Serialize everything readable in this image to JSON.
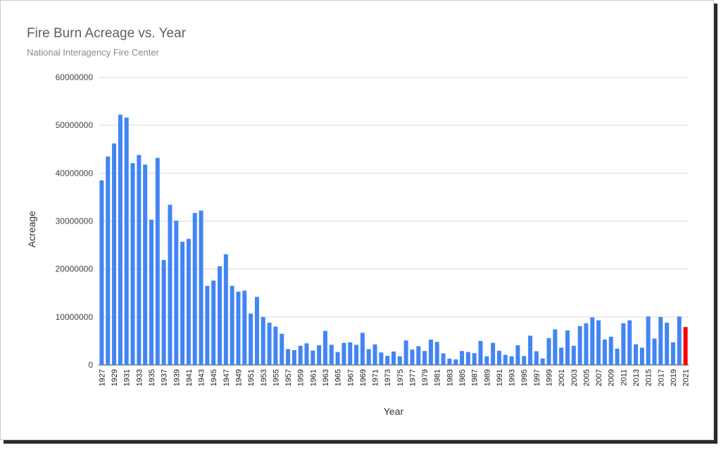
{
  "chart_data": {
    "type": "bar",
    "title": "Fire Burn Acreage vs. Year",
    "subtitle": "National Interagency Fire Center",
    "xlabel": "Year",
    "ylabel": "Acreage",
    "ylim": [
      0,
      60000000
    ],
    "yticks": [
      "0",
      "10000000",
      "20000000",
      "30000000",
      "40000000",
      "50000000",
      "60000000"
    ],
    "grid": true,
    "colors": {
      "bar": "#4285f4",
      "highlight": "#ff0000",
      "grid": "#d9d9d9"
    },
    "highlight_category": "2021",
    "categories": [
      "1927",
      "1928",
      "1929",
      "1930",
      "1931",
      "1932",
      "1933",
      "1934",
      "1935",
      "1936",
      "1937",
      "1938",
      "1939",
      "1940",
      "1941",
      "1942",
      "1943",
      "1944",
      "1945",
      "1946",
      "1947",
      "1948",
      "1949",
      "1950",
      "1951",
      "1952",
      "1953",
      "1954",
      "1955",
      "1956",
      "1957",
      "1958",
      "1959",
      "1960",
      "1961",
      "1962",
      "1963",
      "1964",
      "1965",
      "1966",
      "1967",
      "1968",
      "1969",
      "1970",
      "1971",
      "1972",
      "1973",
      "1974",
      "1975",
      "1976",
      "1977",
      "1978",
      "1979",
      "1980",
      "1981",
      "1982",
      "1983",
      "1984",
      "1985",
      "1986",
      "1987",
      "1988",
      "1989",
      "1990",
      "1991",
      "1992",
      "1993",
      "1994",
      "1995",
      "1996",
      "1997",
      "1998",
      "1999",
      "2000",
      "2001",
      "2002",
      "2003",
      "2004",
      "2005",
      "2006",
      "2007",
      "2008",
      "2009",
      "2010",
      "2011",
      "2012",
      "2013",
      "2014",
      "2015",
      "2016",
      "2017",
      "2018",
      "2019",
      "2020",
      "2021"
    ],
    "values": [
      38500000,
      43500000,
      46200000,
      52200000,
      51600000,
      42100000,
      43800000,
      41800000,
      30300000,
      43200000,
      21900000,
      33400000,
      30100000,
      25700000,
      26300000,
      31700000,
      32200000,
      16500000,
      17600000,
      20600000,
      23100000,
      16500000,
      15300000,
      15500000,
      10700000,
      14200000,
      10000000,
      8800000,
      8000000,
      6500000,
      3300000,
      3100000,
      4000000,
      4500000,
      3000000,
      4100000,
      7100000,
      4200000,
      2700000,
      4600000,
      4700000,
      4200000,
      6700000,
      3300000,
      4300000,
      2600000,
      1900000,
      2800000,
      1800000,
      5100000,
      3200000,
      3900000,
      2900000,
      5300000,
      4800000,
      2400000,
      1300000,
      1150000,
      2900000,
      2700000,
      2450000,
      5000000,
      1800000,
      4600000,
      2950000,
      2100000,
      1800000,
      4100000,
      1850000,
      6100000,
      2850000,
      1350000,
      5600000,
      7400000,
      3600000,
      7200000,
      4000000,
      8100000,
      8700000,
      9900000,
      9300000,
      5300000,
      5900000,
      3400000,
      8700000,
      9300000,
      4300000,
      3600000,
      10100000,
      5500000,
      10000000,
      8800000,
      4700000,
      10100000,
      7900000
    ]
  }
}
